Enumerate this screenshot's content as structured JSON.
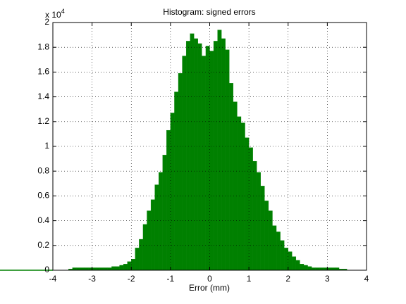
{
  "chart_data": {
    "type": "histogram",
    "title": "Histogram: signed errors",
    "x_label": "Error (mm)",
    "y_multiplier": {
      "base": "x 10",
      "exponent": "4"
    },
    "color": "#008000",
    "grid": true,
    "bins": [
      -3.6,
      -3.5,
      -3.4,
      -3.3,
      -3.2,
      -3.1,
      -3.0,
      -2.9,
      -2.8,
      -2.7,
      -2.6,
      -2.5,
      -2.4,
      -2.3,
      -2.2,
      -2.1,
      -2.0,
      -1.9,
      -1.8,
      -1.7,
      -1.6,
      -1.5,
      -1.4,
      -1.3,
      -1.2,
      -1.1,
      -1.0,
      -0.9,
      -0.8,
      -0.7,
      -0.6,
      -0.5,
      -0.4,
      -0.3,
      -0.2,
      -0.1,
      0.0,
      0.1,
      0.2,
      0.3,
      0.4,
      0.5,
      0.6,
      0.7,
      0.8,
      0.9,
      1.0,
      1.1,
      1.2,
      1.3,
      1.4,
      1.5,
      1.6,
      1.7,
      1.8,
      1.9,
      2.0,
      2.1,
      2.2,
      2.3,
      2.4,
      2.5,
      2.6,
      2.7,
      2.8,
      2.9,
      3.0,
      3.1,
      3.2,
      3.3,
      3.4,
      3.5
    ],
    "values": [
      0.01,
      0.02,
      0.02,
      0.02,
      0.02,
      0.02,
      0.02,
      0.02,
      0.02,
      0.02,
      0.02,
      0.03,
      0.03,
      0.04,
      0.05,
      0.07,
      0.09,
      0.18,
      0.25,
      0.37,
      0.48,
      0.57,
      0.69,
      0.79,
      0.93,
      1.13,
      1.27,
      1.44,
      1.59,
      1.73,
      1.85,
      1.91,
      1.87,
      1.83,
      1.73,
      1.81,
      1.77,
      1.85,
      1.94,
      1.87,
      1.78,
      1.51,
      1.36,
      1.24,
      1.19,
      1.07,
      0.99,
      0.88,
      0.79,
      0.68,
      0.56,
      0.48,
      0.36,
      0.31,
      0.24,
      0.18,
      0.15,
      0.11,
      0.08,
      0.05,
      0.04,
      0.03,
      0.02,
      0.02,
      0.02,
      0.02,
      0.02,
      0.02,
      0.02,
      0.01,
      0.01
    ],
    "xlim": [
      -4,
      4
    ],
    "xticks": [
      -4,
      -3,
      -2,
      -1,
      0,
      1,
      2,
      3,
      4
    ],
    "ylim": [
      0,
      2
    ],
    "yticks": [
      0,
      0.2,
      0.4,
      0.6,
      0.8,
      1,
      1.2,
      1.4,
      1.6,
      1.8,
      2
    ]
  }
}
